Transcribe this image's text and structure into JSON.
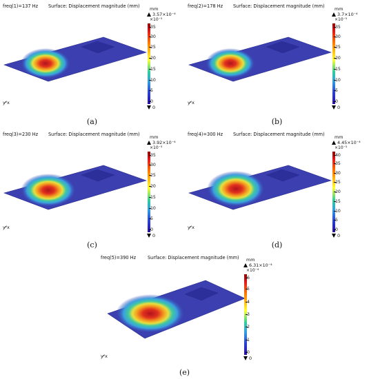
{
  "panels": [
    {
      "freq": "freq(1)=137 Hz",
      "title": "Surface: Displacement magnitude (mm)",
      "unit": "mm",
      "max": "3.57×10⁻⁴",
      "scale": "×10⁻⁵",
      "ticks": [
        "35",
        "30",
        "25",
        "20",
        "15",
        "10",
        "5",
        "0"
      ],
      "min": "0",
      "axes": "yᶻ̸x",
      "caption": "(a)"
    },
    {
      "freq": "freq(2)=178 Hz",
      "title": "Surface: Displacement magnitude (mm)",
      "unit": "mm",
      "max": "3.7×10⁻⁴",
      "scale": "×10⁻⁵",
      "ticks": [
        "35",
        "30",
        "25",
        "20",
        "15",
        "10",
        "5",
        "0"
      ],
      "min": "0",
      "axes": "yᶻ̸x",
      "caption": "(b)"
    },
    {
      "freq": "freq(3)=230 Hz",
      "title": "Surface: Displacement magnitude (mm)",
      "unit": "mm",
      "max": "3.92×10⁻⁴",
      "scale": "×10⁻⁵",
      "ticks": [
        "35",
        "30",
        "25",
        "20",
        "15",
        "10",
        "5",
        "0"
      ],
      "min": "0",
      "axes": "yᶻ̸x",
      "caption": "(c)"
    },
    {
      "freq": "freq(4)=300 Hz",
      "title": "Surface: Displacement magnitude (mm)",
      "unit": "mm",
      "max": "4.45×10⁻⁴",
      "scale": "×10⁻⁵",
      "ticks": [
        "40",
        "35",
        "30",
        "25",
        "20",
        "15",
        "10",
        "5",
        "0"
      ],
      "min": "0",
      "axes": "yᶻ̸x",
      "caption": "(d)"
    },
    {
      "freq": "freq(5)=390 Hz",
      "title": "Surface: Displacement magnitude (mm)",
      "unit": "mm",
      "max": "6.31×10⁻⁴",
      "scale": "×10⁻⁴",
      "ticks": [
        "6",
        "5",
        "4",
        "3",
        "2",
        "1",
        "0"
      ],
      "min": "0",
      "axes": "yᶻ̸x",
      "caption": "(e)"
    }
  ],
  "colors": {
    "plate": "#3b3fb0",
    "plate_edge": "#2a2e8f",
    "patch": "#2c2f9a",
    "hot": "#c81e1e"
  }
}
